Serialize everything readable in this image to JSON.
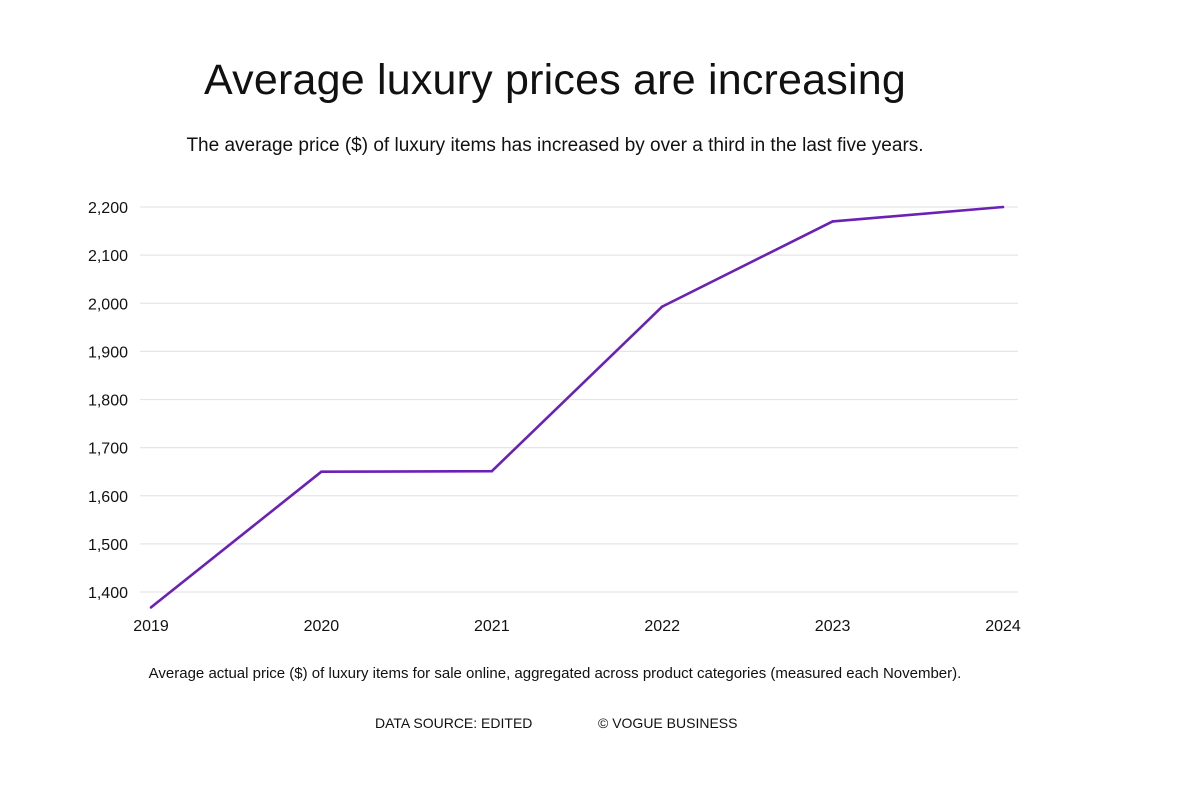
{
  "chart_data": {
    "type": "line",
    "title": "Average luxury prices are increasing",
    "subtitle": "The average price ($) of luxury items has increased by over a third in the last five years.",
    "xlabel": "",
    "ylabel": "",
    "x": [
      "2019",
      "2020",
      "2021",
      "2022",
      "2023",
      "2024"
    ],
    "series": [
      {
        "name": "Average price ($)",
        "values": [
          1368,
          1650,
          1651,
          1993,
          2170,
          2200
        ],
        "color": "#6b21b5"
      }
    ],
    "ylim": [
      1400,
      2200
    ],
    "yticks": [
      2200,
      2100,
      2000,
      1900,
      1800,
      1700,
      1600,
      1500,
      1400
    ],
    "ytick_labels": [
      "2,200",
      "2,100",
      "2,000",
      "1,900",
      "1,800",
      "1,700",
      "1,600",
      "1,500",
      "1,400"
    ],
    "grid": true,
    "legend": "none"
  },
  "footer": {
    "note": "Average actual price ($) of luxury items for sale online, aggregated across product categories (measured each November).",
    "source": "DATA SOURCE: EDITED",
    "credit": "© VOGUE BUSINESS"
  }
}
